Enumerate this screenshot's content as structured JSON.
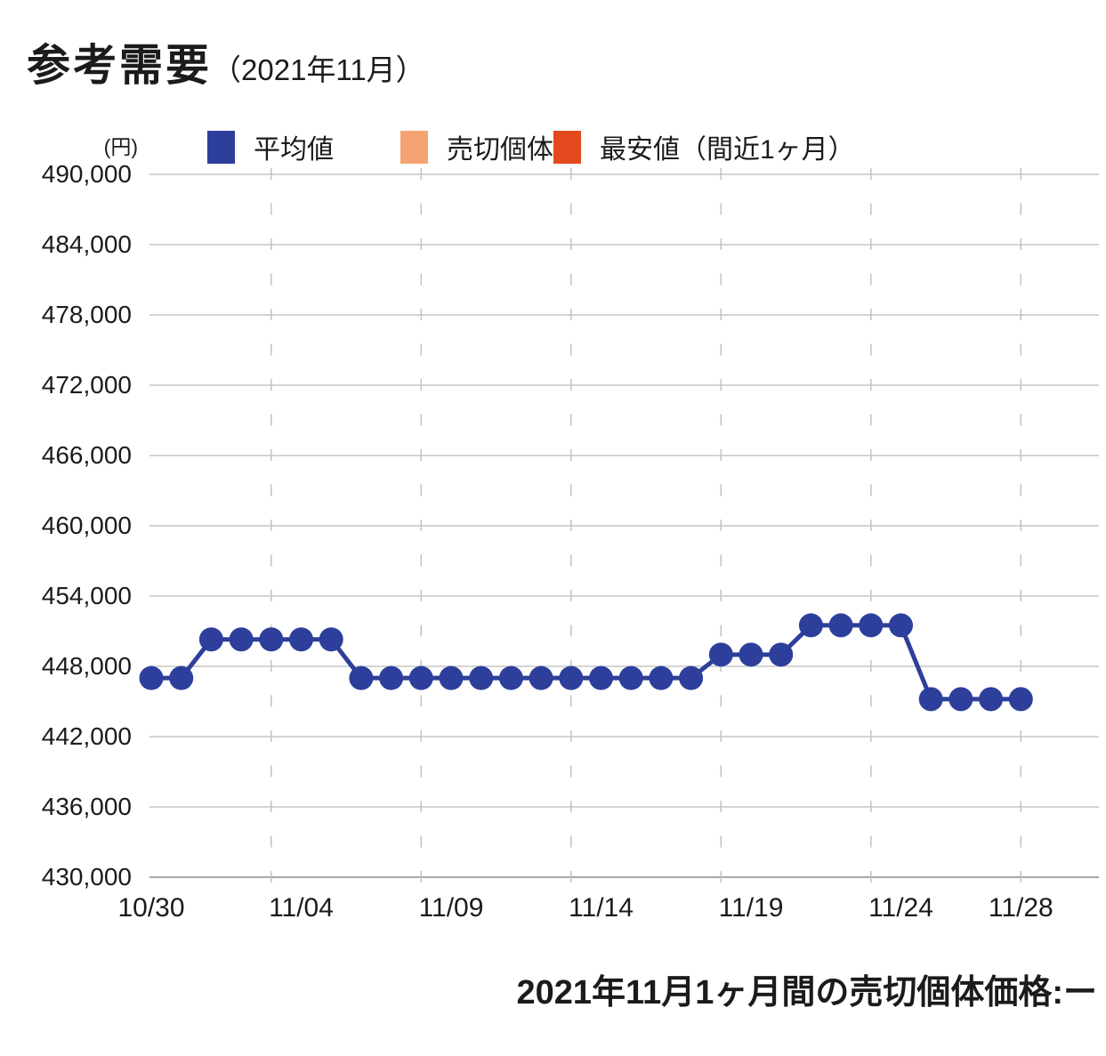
{
  "title": {
    "main": "参考需要",
    "period": "（2021年11月）"
  },
  "y_axis_unit": "(円)",
  "legend": {
    "items": [
      {
        "label": "平均値",
        "color": "#2d3f9b"
      },
      {
        "label": "売切個体",
        "color": "#f4a372"
      },
      {
        "label": "最安値（間近1ヶ月）",
        "color": "#e2491d"
      }
    ]
  },
  "footer_note": "2021年11月1ヶ月間の売切個体価格:ー",
  "colors": {
    "grid": "#c6c6c6",
    "axis": "#a8a8a8",
    "dashed": "#c2c2c2",
    "text": "#1b1b1b",
    "line": "#2d3f9b"
  },
  "chart_data": {
    "type": "line",
    "title": "参考需要（2021年11月）",
    "xlabel": "",
    "ylabel": "円",
    "ylim": [
      430000,
      490000
    ],
    "y_tick_step": 6000,
    "grid": true,
    "legend_position": "top",
    "y_tick_labels": [
      "490,000",
      "484,000",
      "478,000",
      "472,000",
      "466,000",
      "460,000",
      "454,000",
      "448,000",
      "442,000",
      "436,000",
      "430,000"
    ],
    "x": [
      "10/30",
      "10/31",
      "11/01",
      "11/02",
      "11/03",
      "11/04",
      "11/05",
      "11/06",
      "11/07",
      "11/08",
      "11/09",
      "11/10",
      "11/11",
      "11/12",
      "11/13",
      "11/14",
      "11/15",
      "11/16",
      "11/17",
      "11/18",
      "11/19",
      "11/20",
      "11/21",
      "11/22",
      "11/23",
      "11/24",
      "11/25",
      "11/26",
      "11/27",
      "11/28"
    ],
    "x_tick_labels": [
      "10/30",
      "11/04",
      "11/09",
      "11/14",
      "11/19",
      "11/24",
      "11/28"
    ],
    "x_tick_indices": [
      0,
      5,
      10,
      15,
      20,
      25,
      29
    ],
    "grid_v_indices": [
      4,
      9,
      14,
      19,
      24,
      29
    ],
    "series": [
      {
        "name": "平均値",
        "color": "#2d3f9b",
        "values": [
          447000,
          447000,
          450300,
          450300,
          450300,
          450300,
          450300,
          447000,
          447000,
          447000,
          447000,
          447000,
          447000,
          447000,
          447000,
          447000,
          447000,
          447000,
          447000,
          449000,
          449000,
          449000,
          451500,
          451500,
          451500,
          451500,
          445200,
          445200,
          445200,
          445200
        ]
      },
      {
        "name": "売切個体",
        "color": "#f4a372",
        "values": []
      },
      {
        "name": "最安値（間近1ヶ月）",
        "color": "#e2491d",
        "values": []
      }
    ]
  }
}
